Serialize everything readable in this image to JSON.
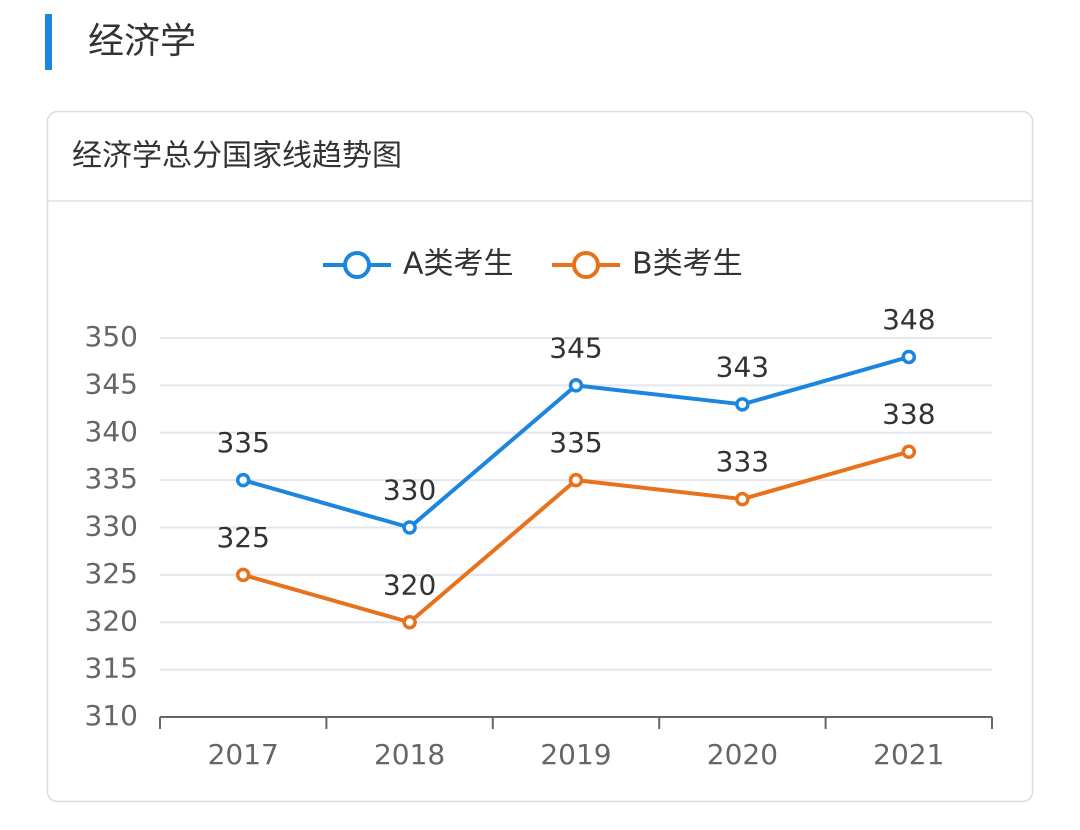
{
  "header": {
    "title": "经济学"
  },
  "chart_data": {
    "type": "line",
    "title": "经济学总分国家线趋势图",
    "categories": [
      "2017",
      "2018",
      "2019",
      "2020",
      "2021"
    ],
    "series": [
      {
        "name": "A类考生",
        "color": "#1a86e0",
        "values": [
          335,
          330,
          345,
          343,
          348
        ]
      },
      {
        "name": "B类考生",
        "color": "#e8721c",
        "values": [
          325,
          320,
          335,
          333,
          338
        ]
      }
    ],
    "ylim": [
      310,
      350
    ],
    "yticks": [
      310,
      315,
      320,
      325,
      330,
      335,
      340,
      345,
      350
    ],
    "grid": true,
    "legend": "top"
  }
}
